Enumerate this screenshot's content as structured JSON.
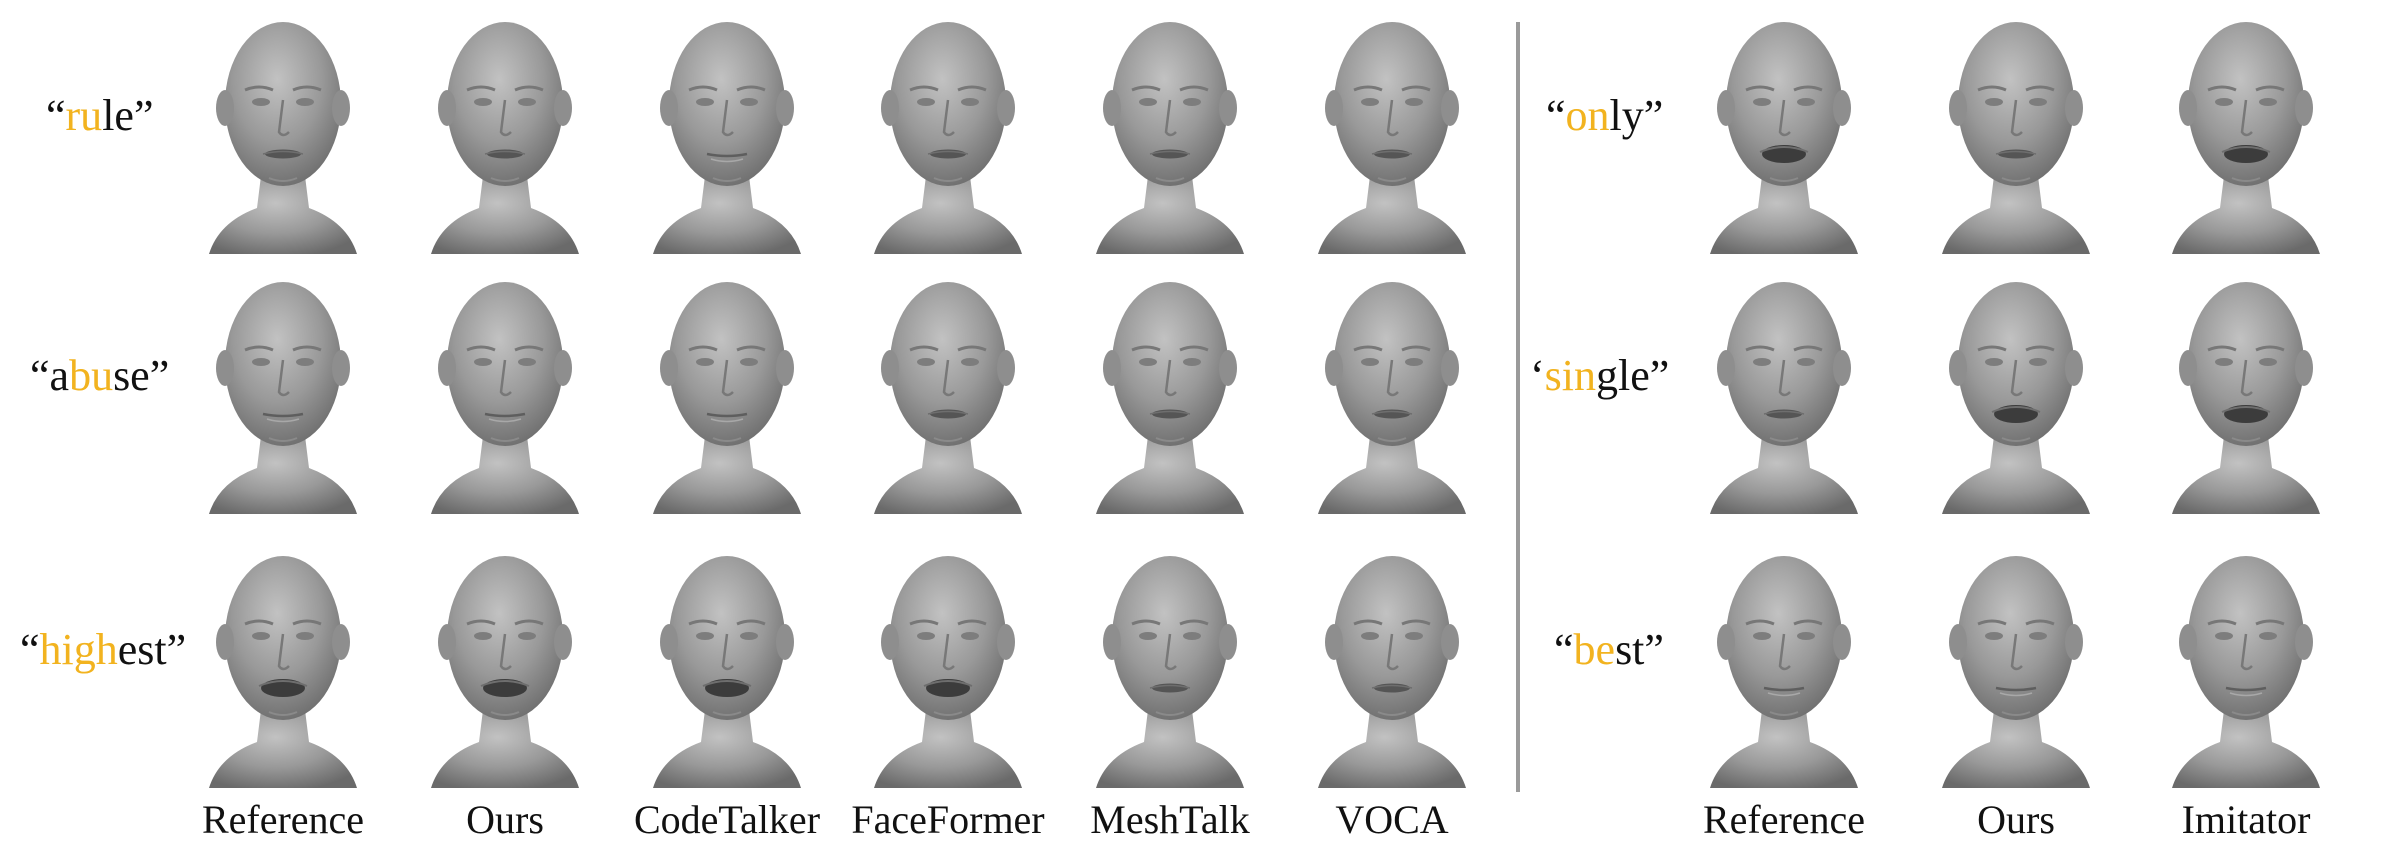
{
  "left": {
    "columns": [
      "Reference",
      "Ours",
      "CodeTalker",
      "FaceFormer",
      "MeshTalk",
      "VOCA"
    ],
    "rows": [
      {
        "parts": [
          {
            "t": "“",
            "hl": false
          },
          {
            "t": "ru",
            "hl": true
          },
          {
            "t": "le”",
            "hl": false
          }
        ],
        "mouth": [
          "slight",
          "slight",
          "closed",
          "slight",
          "slight",
          "slight"
        ]
      },
      {
        "parts": [
          {
            "t": "“a",
            "hl": false
          },
          {
            "t": "bu",
            "hl": true
          },
          {
            "t": "se”",
            "hl": false
          }
        ],
        "mouth": [
          "closed",
          "closed",
          "closed",
          "slight",
          "slight",
          "slight"
        ]
      },
      {
        "parts": [
          {
            "t": "“",
            "hl": false
          },
          {
            "t": "high",
            "hl": true
          },
          {
            "t": "est”",
            "hl": false
          }
        ],
        "mouth": [
          "open",
          "open",
          "open",
          "open",
          "slight",
          "slight"
        ]
      }
    ]
  },
  "right": {
    "columns": [
      "Reference",
      "Ours",
      "Imitator"
    ],
    "rows": [
      {
        "parts": [
          {
            "t": "“",
            "hl": false
          },
          {
            "t": "on",
            "hl": true
          },
          {
            "t": "ly”",
            "hl": false
          }
        ],
        "mouth": [
          "open",
          "slight",
          "open"
        ]
      },
      {
        "parts": [
          {
            "t": "‘",
            "hl": false
          },
          {
            "t": "sin",
            "hl": true
          },
          {
            "t": "gle”",
            "hl": false
          }
        ],
        "mouth": [
          "slight",
          "open",
          "open"
        ]
      },
      {
        "parts": [
          {
            "t": "“",
            "hl": false
          },
          {
            "t": "be",
            "hl": true
          },
          {
            "t": "st”",
            "hl": false
          }
        ],
        "mouth": [
          "closed",
          "closed",
          "closed"
        ]
      }
    ]
  },
  "colors": {
    "highlight": "#f2b31f",
    "head": "#8c8c8c",
    "divider": "#9a9a9a"
  }
}
